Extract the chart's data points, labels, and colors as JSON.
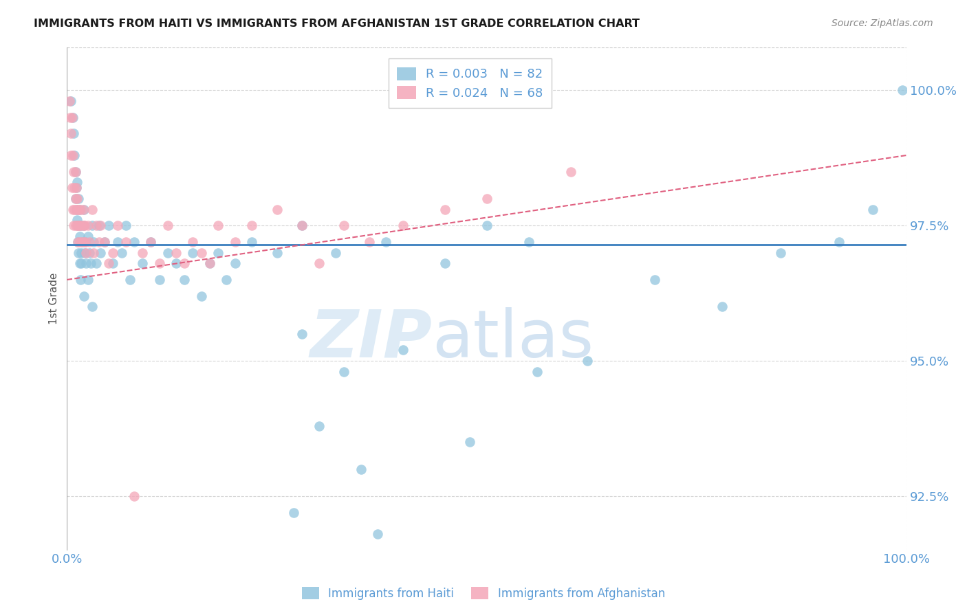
{
  "title": "IMMIGRANTS FROM HAITI VS IMMIGRANTS FROM AFGHANISTAN 1ST GRADE CORRELATION CHART",
  "source": "Source: ZipAtlas.com",
  "ylabel": "1st Grade",
  "xlim": [
    0.0,
    100.0
  ],
  "ylim": [
    91.5,
    100.8
  ],
  "yticks": [
    92.5,
    95.0,
    97.5,
    100.0
  ],
  "ytick_labels": [
    "92.5%",
    "95.0%",
    "97.5%",
    "100.0%"
  ],
  "legend_haiti_R": "R = 0.003",
  "legend_haiti_N": "N = 82",
  "legend_afg_R": "R = 0.024",
  "legend_afg_N": "N = 68",
  "haiti_color": "#92c5de",
  "afg_color": "#f4a6b8",
  "haiti_trend_color": "#3a7ebf",
  "afg_trend_color": "#e06080",
  "haiti_trend_y_at_0": 97.15,
  "haiti_trend_y_at_100": 97.15,
  "afg_trend_y_at_0": 96.5,
  "afg_trend_y_at_100": 98.8,
  "title_fontsize": 11.5,
  "tick_color": "#5b9bd5",
  "grid_color": "#cccccc",
  "haiti_x": [
    0.5,
    0.7,
    0.8,
    0.9,
    1.0,
    1.0,
    1.1,
    1.1,
    1.2,
    1.2,
    1.3,
    1.3,
    1.4,
    1.4,
    1.5,
    1.5,
    1.5,
    1.6,
    1.6,
    1.7,
    1.7,
    1.8,
    1.9,
    2.0,
    2.0,
    2.1,
    2.2,
    2.3,
    2.5,
    2.5,
    2.7,
    2.8,
    3.0,
    3.0,
    3.2,
    3.5,
    3.8,
    4.0,
    4.5,
    5.0,
    5.5,
    6.0,
    6.5,
    7.0,
    7.5,
    8.0,
    9.0,
    10.0,
    11.0,
    12.0,
    13.0,
    14.0,
    15.0,
    16.0,
    17.0,
    18.0,
    19.0,
    20.0,
    22.0,
    25.0,
    28.0,
    32.0,
    38.0,
    45.0,
    50.0,
    55.0,
    28.0,
    33.0,
    40.0,
    48.0,
    56.0,
    62.0,
    70.0,
    78.0,
    85.0,
    92.0,
    96.0,
    27.0,
    30.0,
    35.0,
    37.0,
    99.5
  ],
  "haiti_y": [
    99.8,
    99.5,
    99.2,
    98.8,
    98.5,
    98.0,
    98.2,
    97.8,
    97.6,
    98.3,
    97.2,
    97.5,
    97.0,
    98.0,
    97.3,
    97.8,
    96.8,
    97.5,
    96.5,
    97.0,
    96.8,
    97.2,
    97.5,
    96.2,
    97.8,
    97.0,
    97.2,
    96.8,
    96.5,
    97.3,
    97.0,
    96.8,
    97.5,
    96.0,
    97.2,
    96.8,
    97.5,
    97.0,
    97.2,
    97.5,
    96.8,
    97.2,
    97.0,
    97.5,
    96.5,
    97.2,
    96.8,
    97.2,
    96.5,
    97.0,
    96.8,
    96.5,
    97.0,
    96.2,
    96.8,
    97.0,
    96.5,
    96.8,
    97.2,
    97.0,
    97.5,
    97.0,
    97.2,
    96.8,
    97.5,
    97.2,
    95.5,
    94.8,
    95.2,
    93.5,
    94.8,
    95.0,
    96.5,
    96.0,
    97.0,
    97.2,
    97.8,
    92.2,
    93.8,
    93.0,
    91.8,
    100.0
  ],
  "afg_x": [
    0.3,
    0.4,
    0.5,
    0.5,
    0.6,
    0.6,
    0.7,
    0.7,
    0.8,
    0.8,
    0.9,
    0.9,
    1.0,
    1.0,
    1.0,
    1.1,
    1.1,
    1.2,
    1.2,
    1.3,
    1.3,
    1.4,
    1.4,
    1.5,
    1.5,
    1.6,
    1.7,
    1.8,
    1.9,
    2.0,
    2.0,
    2.1,
    2.2,
    2.3,
    2.5,
    2.7,
    3.0,
    3.2,
    3.5,
    3.8,
    4.0,
    4.5,
    5.0,
    5.5,
    6.0,
    7.0,
    8.0,
    9.0,
    10.0,
    11.0,
    12.0,
    13.0,
    14.0,
    15.0,
    16.0,
    17.0,
    18.0,
    20.0,
    22.0,
    25.0,
    28.0,
    30.0,
    33.0,
    36.0,
    40.0,
    45.0,
    50.0,
    60.0
  ],
  "afg_y": [
    99.8,
    99.5,
    99.2,
    98.8,
    99.5,
    98.2,
    98.8,
    97.8,
    98.5,
    97.5,
    98.2,
    97.8,
    98.5,
    97.5,
    98.0,
    97.8,
    98.2,
    97.5,
    98.0,
    97.8,
    97.2,
    97.5,
    97.8,
    97.2,
    97.5,
    97.8,
    97.5,
    97.2,
    97.8,
    97.5,
    97.2,
    97.5,
    97.2,
    97.0,
    97.5,
    97.2,
    97.8,
    97.0,
    97.5,
    97.2,
    97.5,
    97.2,
    96.8,
    97.0,
    97.5,
    97.2,
    92.5,
    97.0,
    97.2,
    96.8,
    97.5,
    97.0,
    96.8,
    97.2,
    97.0,
    96.8,
    97.5,
    97.2,
    97.5,
    97.8,
    97.5,
    96.8,
    97.5,
    97.2,
    97.5,
    97.8,
    98.0,
    98.5
  ]
}
